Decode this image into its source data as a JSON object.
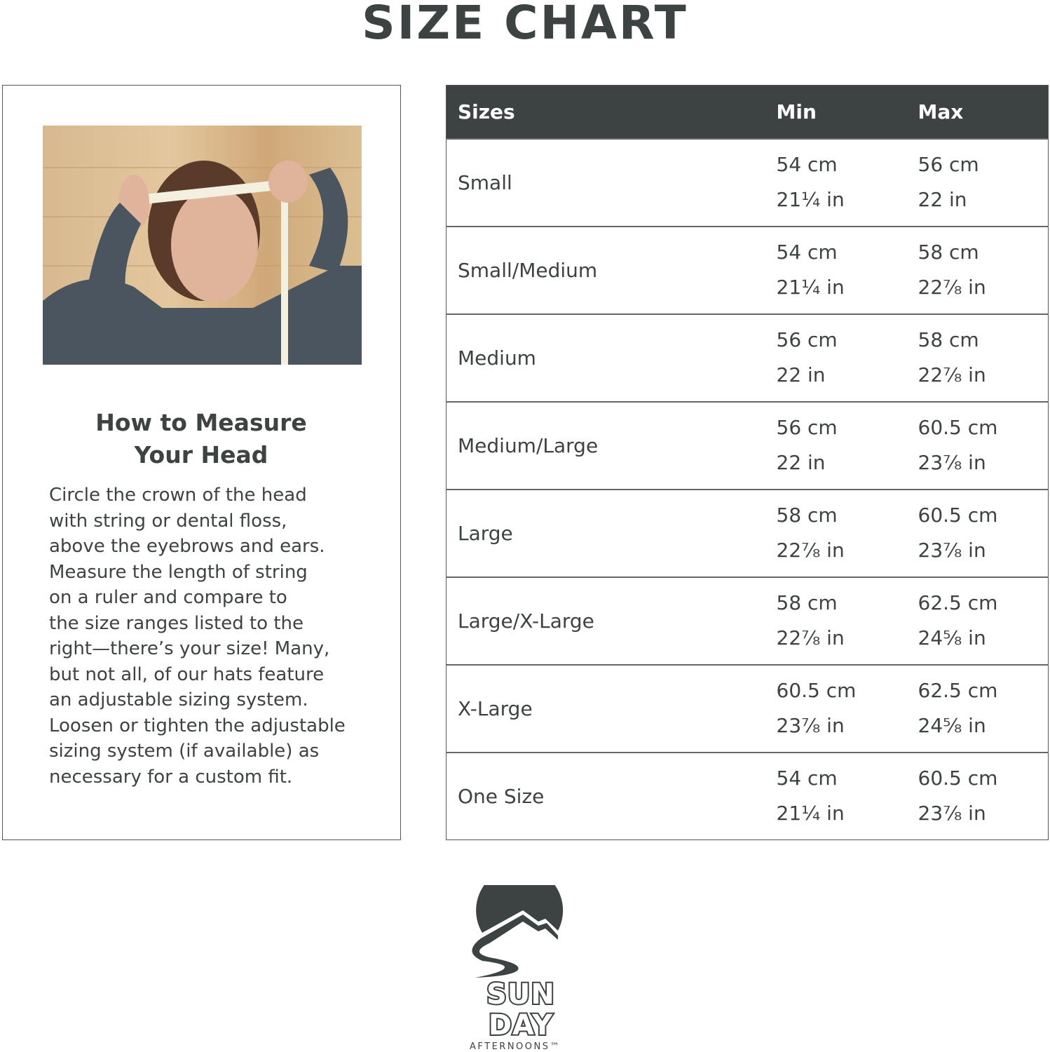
{
  "title": "SIZE CHART",
  "howto": {
    "title_lines": [
      "How to Measure",
      "Your Head"
    ],
    "text_lines": [
      "Circle the crown of the head",
      "with string or dental floss,",
      "above the eyebrows and ears.",
      "Measure the length of string",
      "on a ruler and compare to",
      "the size ranges listed to the",
      "right—there’s your size! Many,",
      "but not all, of our hats feature",
      "an adjustable sizing system.",
      "Loosen or tighten the adjustable",
      "sizing system (if available) as",
      "necessary for a custom fit."
    ]
  },
  "table": {
    "headers": [
      "Sizes",
      "Min",
      "Max"
    ],
    "rows": [
      {
        "size": "Small",
        "min_cm": "54 cm",
        "min_in": "21¼ in",
        "max_cm": "56 cm",
        "max_in": "22 in"
      },
      {
        "size": "Small/Medium",
        "min_cm": "54 cm",
        "min_in": "21¼ in",
        "max_cm": "58 cm",
        "max_in": "22⅞ in"
      },
      {
        "size": "Medium",
        "min_cm": "56 cm",
        "min_in": "22 in",
        "max_cm": "58 cm",
        "max_in": "22⅞ in"
      },
      {
        "size": "Medium/Large",
        "min_cm": "56 cm",
        "min_in": "22 in",
        "max_cm": "60.5 cm",
        "max_in": "23⅞ in"
      },
      {
        "size": "Large",
        "min_cm": "58 cm",
        "min_in": "22⅞ in",
        "max_cm": "60.5 cm",
        "max_in": "23⅞ in"
      },
      {
        "size": "Large/X-Large",
        "min_cm": "58 cm",
        "min_in": "22⅞ in",
        "max_cm": "62.5 cm",
        "max_in": "24⅝ in"
      },
      {
        "size": "X-Large",
        "min_cm": "60.5 cm",
        "min_in": "23⅞ in",
        "max_cm": "62.5 cm",
        "max_in": "24⅝ in"
      },
      {
        "size": "One Size",
        "min_cm": "54 cm",
        "min_in": "21¼ in",
        "max_cm": "60.5 cm",
        "max_in": "23⅞ in"
      }
    ]
  },
  "logo": {
    "line1": "SUN",
    "line2": "DAY",
    "line3": "AFTERNOONS™"
  },
  "colors": {
    "header_bg": "#3d4242",
    "text": "#3d4242"
  }
}
